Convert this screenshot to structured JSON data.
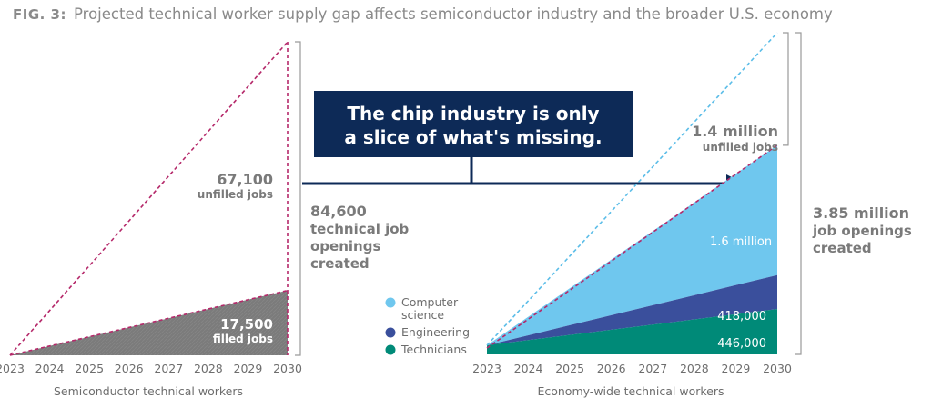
{
  "figure": {
    "label": "FIG. 3:",
    "title": "Projected technical worker supply gap affects semiconductor industry and the broader U.S. economy"
  },
  "callout": {
    "line1": "The chip industry is only",
    "line2": "a slice of what's missing."
  },
  "colors": {
    "filled_gray": "#7b7b7b",
    "dashed_magenta": "#b5296a",
    "dashed_lightblue": "#5bbde8",
    "computer_science": "#6fc7ee",
    "engineering": "#3a4f9c",
    "technicians": "#008a78",
    "navy": "#0d2a57",
    "bracket": "#9a9a9a"
  },
  "chart_data": [
    {
      "type": "area",
      "axis_title": "Semiconductor technical workers",
      "x": [
        "2023",
        "2024",
        "2025",
        "2026",
        "2027",
        "2028",
        "2029",
        "2030"
      ],
      "series": [
        {
          "values": [
            0,
            2500,
            5000,
            7500,
            10000,
            12500,
            15000,
            17500
          ]
        },
        {
          "values": [
            0,
            12086,
            24171,
            36257,
            48343,
            60429,
            72514,
            84600
          ]
        }
      ],
      "annotations": {
        "unfilled_value": "67,100",
        "unfilled_label": "unfilled jobs",
        "filled_value": "17,500",
        "filled_label": "filled jobs",
        "total_lines": [
          "84,600",
          "technical job",
          "openings",
          "created"
        ]
      }
    },
    {
      "type": "area",
      "axis_title": "Economy-wide technical workers",
      "x": [
        "2023",
        "2024",
        "2025",
        "2026",
        "2027",
        "2028",
        "2029",
        "2030"
      ],
      "series": [
        {
          "name": "Technicians",
          "values": [
            0,
            63714,
            127429,
            191143,
            254857,
            318571,
            382286,
            446000
          ]
        },
        {
          "name": "Engineering",
          "values": [
            0,
            59714,
            119429,
            179143,
            238857,
            298571,
            358286,
            418000
          ]
        },
        {
          "name": "Computer science",
          "values": [
            0,
            228571,
            457143,
            685714,
            914286,
            1142857,
            1371429,
            1600000
          ]
        },
        {
          "values": [
            0,
            352000,
            704000,
            1056000,
            1408000,
            1760000,
            2112000,
            2464000
          ]
        },
        {
          "values": [
            0,
            550000,
            1100000,
            1650000,
            2200000,
            2750000,
            3300000,
            3850000
          ]
        }
      ],
      "legend": [
        "Computer science",
        "Engineering",
        "Technicians"
      ],
      "legend_cs_lines": [
        "Computer",
        "science"
      ],
      "annotations": {
        "cs_label": "1.6 million",
        "eng_label": "418,000",
        "tech_label": "446,000",
        "unfilled_value": "1.4 million",
        "unfilled_label": "unfilled jobs",
        "total_lines": [
          "3.85 million",
          "job openings",
          "created"
        ]
      }
    }
  ]
}
